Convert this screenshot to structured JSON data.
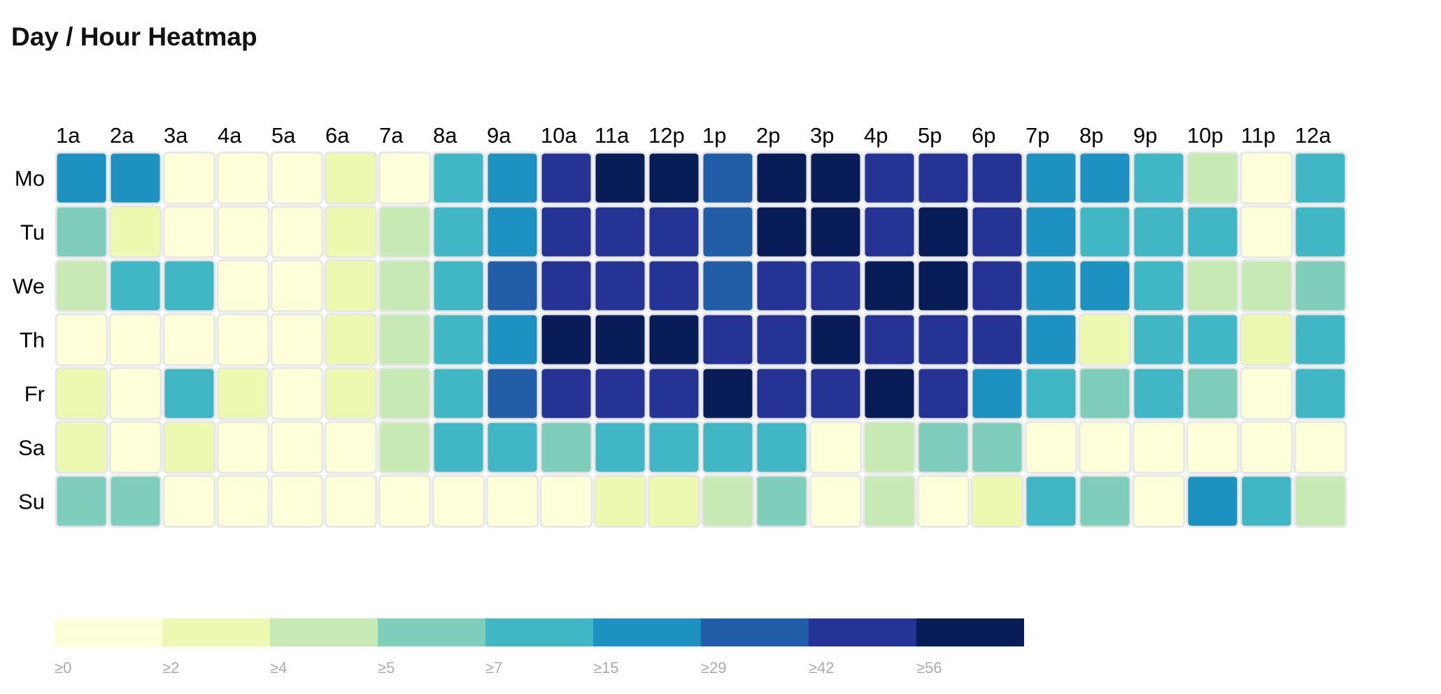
{
  "chart_data": {
    "type": "heatmap",
    "title": "Day / Hour Heatmap",
    "days": [
      "Mo",
      "Tu",
      "We",
      "Th",
      "Fr",
      "Sa",
      "Su"
    ],
    "hours": [
      "1a",
      "2a",
      "3a",
      "4a",
      "5a",
      "6a",
      "7a",
      "8a",
      "9a",
      "10a",
      "11a",
      "12p",
      "1p",
      "2p",
      "3p",
      "4p",
      "5p",
      "6p",
      "7p",
      "8p",
      "9p",
      "10p",
      "11p",
      "12a"
    ],
    "values": [
      [
        15,
        15,
        0,
        0,
        0,
        2,
        0,
        7,
        15,
        42,
        56,
        56,
        29,
        56,
        56,
        42,
        42,
        42,
        15,
        15,
        7,
        4,
        0,
        7
      ],
      [
        5,
        2,
        0,
        0,
        0,
        2,
        4,
        7,
        15,
        42,
        42,
        42,
        29,
        56,
        56,
        42,
        56,
        42,
        15,
        7,
        7,
        7,
        0,
        7
      ],
      [
        4,
        7,
        7,
        0,
        0,
        2,
        4,
        7,
        29,
        42,
        42,
        42,
        29,
        42,
        42,
        56,
        56,
        42,
        15,
        15,
        7,
        4,
        4,
        5
      ],
      [
        0,
        0,
        0,
        0,
        0,
        2,
        4,
        7,
        15,
        56,
        56,
        56,
        42,
        42,
        56,
        42,
        42,
        42,
        15,
        2,
        7,
        7,
        2,
        7
      ],
      [
        2,
        0,
        7,
        2,
        0,
        2,
        4,
        7,
        29,
        42,
        42,
        42,
        56,
        42,
        42,
        56,
        42,
        15,
        7,
        5,
        7,
        5,
        0,
        7
      ],
      [
        2,
        0,
        2,
        0,
        0,
        0,
        4,
        7,
        7,
        5,
        7,
        7,
        7,
        7,
        0,
        4,
        5,
        5,
        0,
        0,
        0,
        0,
        0,
        0
      ],
      [
        5,
        5,
        0,
        0,
        0,
        0,
        0,
        0,
        0,
        0,
        2,
        2,
        4,
        5,
        0,
        4,
        0,
        2,
        7,
        5,
        0,
        15,
        7,
        4
      ]
    ],
    "legend": {
      "thresholds": [
        0,
        2,
        4,
        5,
        7,
        15,
        29,
        42,
        56
      ],
      "labels": [
        "≥0",
        "≥2",
        "≥4",
        "≥5",
        "≥7",
        "≥15",
        "≥29",
        "≥42",
        "≥56"
      ],
      "colors": [
        "#ffffd9",
        "#edf8b1",
        "#c7e9b4",
        "#7fcdbb",
        "#41b6c4",
        "#1d91c0",
        "#225ea8",
        "#253494",
        "#081d58"
      ]
    }
  }
}
